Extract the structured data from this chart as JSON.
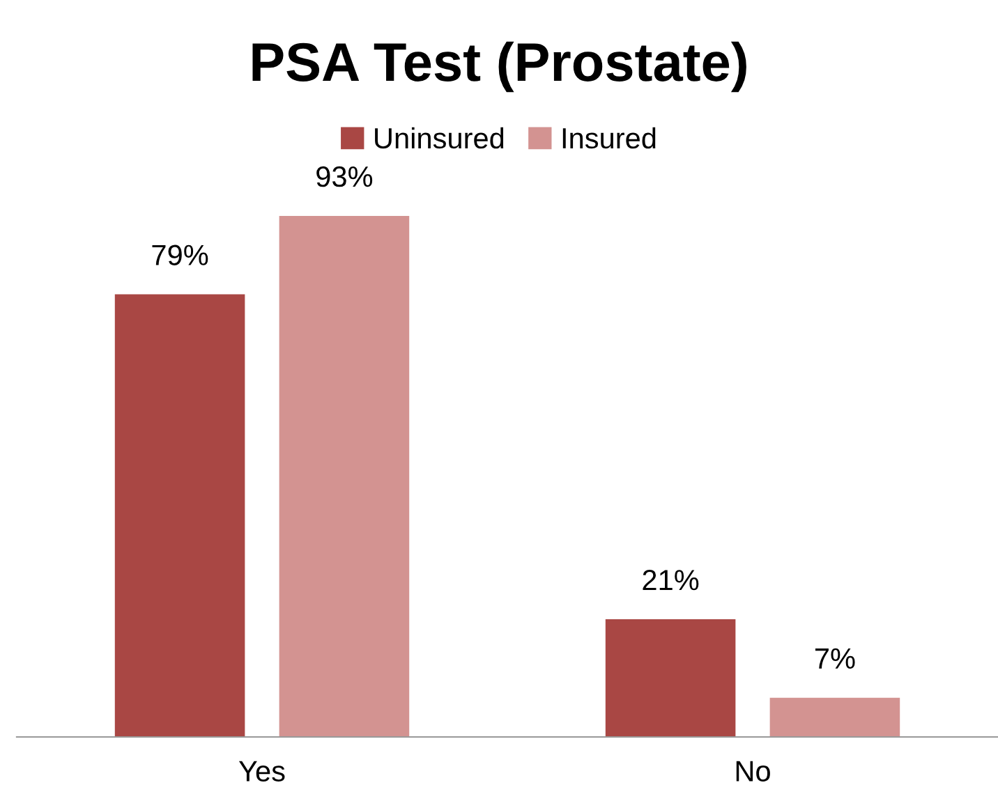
{
  "chart_data": {
    "type": "bar",
    "title": "PSA Test (Prostate)",
    "categories": [
      "Yes",
      "No"
    ],
    "series": [
      {
        "name": "Uninsured",
        "color": "#a94744",
        "values": [
          79,
          21
        ],
        "value_labels": [
          "79%",
          "21%"
        ]
      },
      {
        "name": "Insured",
        "color": "#d39391",
        "values": [
          93,
          7
        ],
        "value_labels": [
          "93%",
          "7%"
        ]
      }
    ],
    "legend": "top",
    "grid": false
  }
}
